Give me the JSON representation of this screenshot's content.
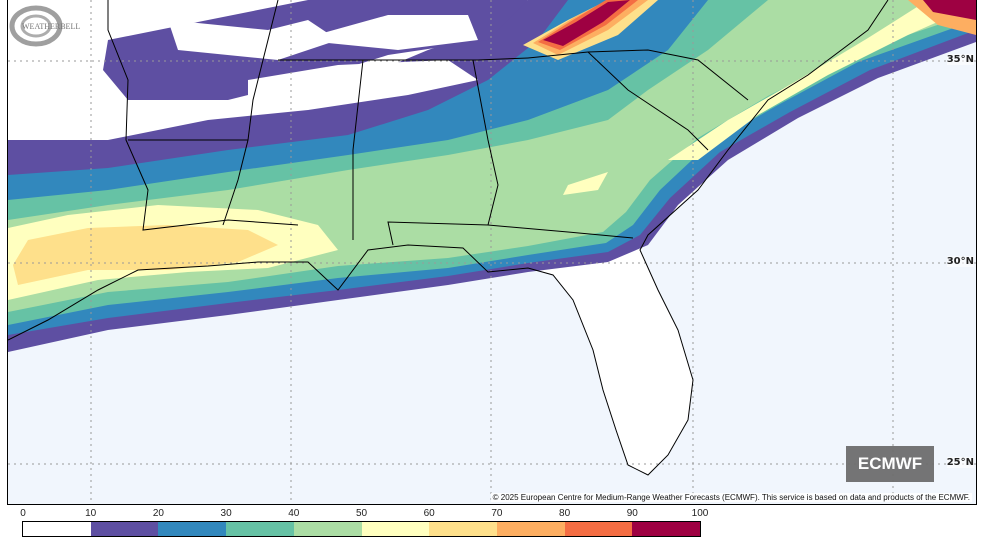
{
  "map": {
    "lat_labels": [
      "35°N",
      "30°N",
      "25°N"
    ],
    "copyright": "© 2025 European Centre for Medium-Range Weather Forecasts (ECMWF). This service is based on data and products of the ECMWF.",
    "badge": "ECMWF",
    "logo_text": "WeatherBELL Analytics LLC"
  },
  "colorbar": {
    "ticks": [
      "0",
      "10",
      "20",
      "30",
      "40",
      "50",
      "60",
      "70",
      "80",
      "90",
      "100"
    ],
    "colors": [
      "#ffffff",
      "#5e4fa2",
      "#3288bd",
      "#66c2a5",
      "#abdda4",
      "#ffffbf",
      "#fee08b",
      "#fdae61",
      "#f46d43",
      "#9e0142"
    ]
  }
}
